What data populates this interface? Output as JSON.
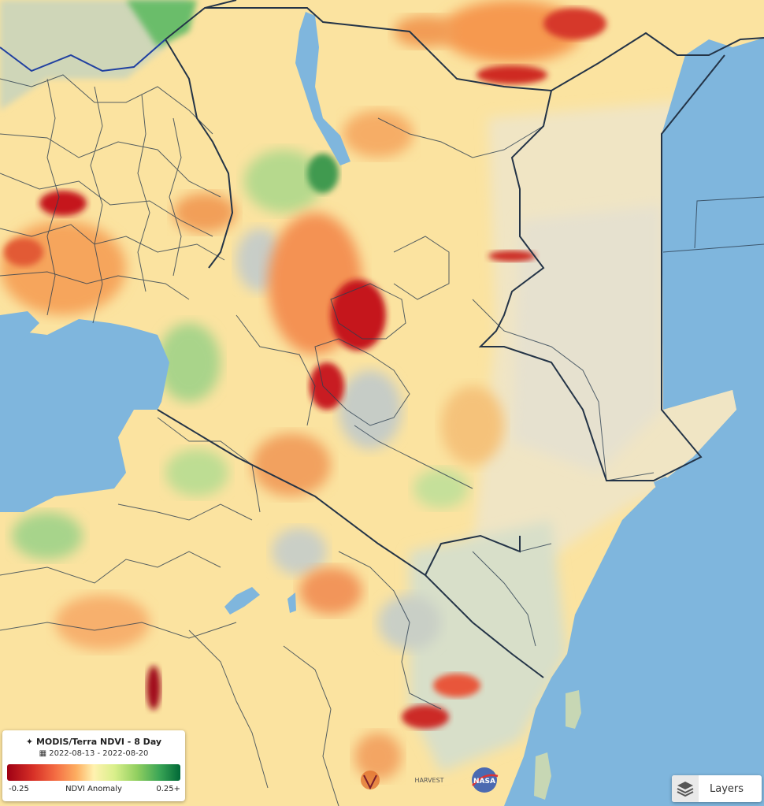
{
  "legend": {
    "title": "MODIS/Terra NDVI - 8 Day",
    "date_range": "2022-08-13 - 2022-08-20",
    "min_label": "-0.25",
    "mid_label": "NDVI Anomaly",
    "max_label": "0.25+",
    "colors": [
      "#9e0014",
      "#d73027",
      "#f46d43",
      "#fdae61",
      "#fff2b0",
      "#d9ef8b",
      "#91cf60",
      "#3aa556",
      "#006837"
    ]
  },
  "layers_button": {
    "label": "Layers",
    "icon": "layers-icon"
  },
  "logos": {
    "harvest": "HARVEST",
    "nasa": "NASA"
  },
  "map": {
    "water_color": "#7fb6dd",
    "land_base_color": "#fbe3a0"
  }
}
